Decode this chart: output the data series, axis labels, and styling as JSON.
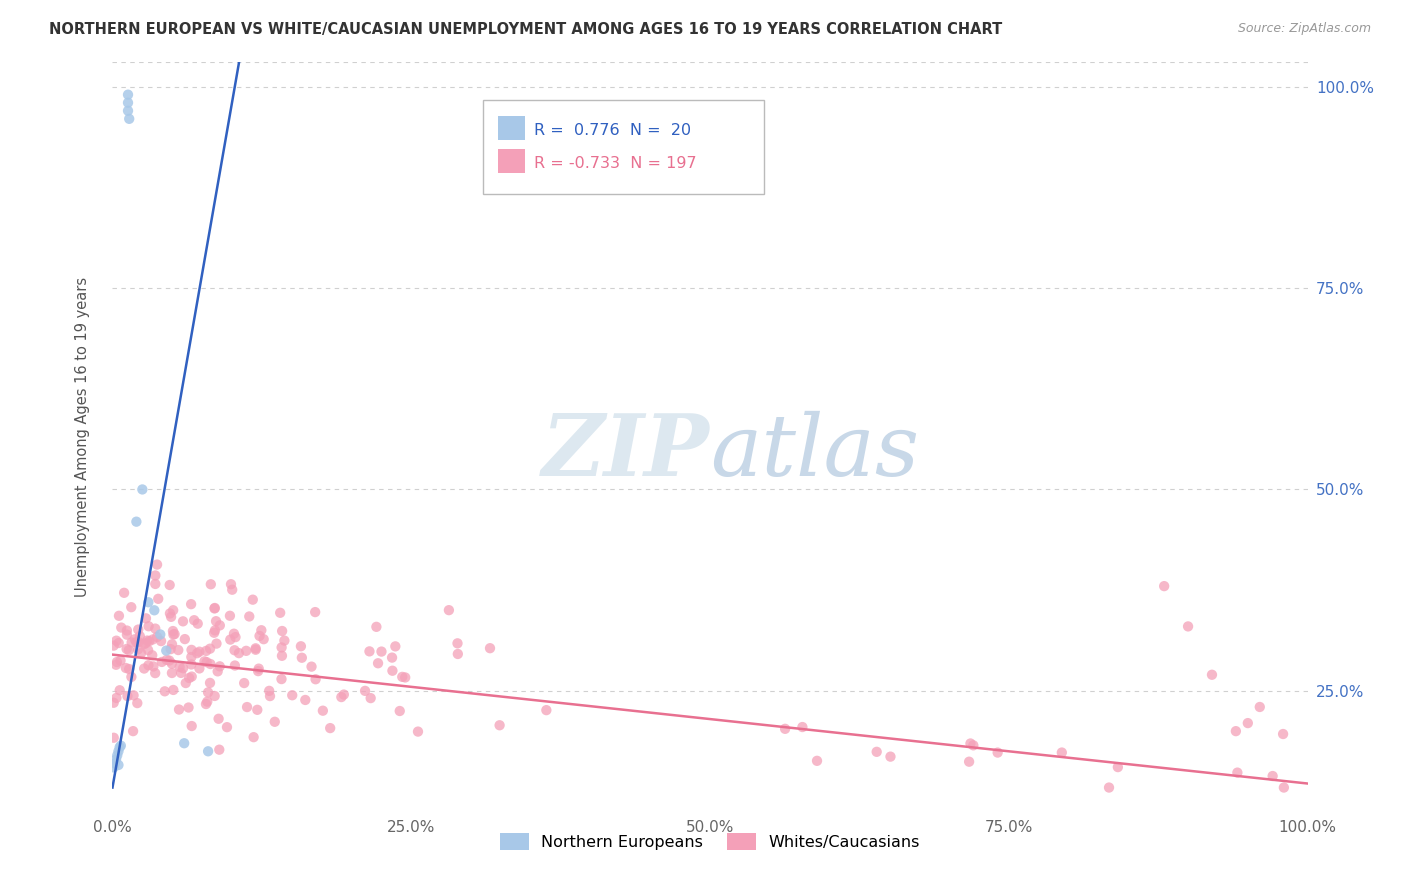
{
  "title": "NORTHERN EUROPEAN VS WHITE/CAUCASIAN UNEMPLOYMENT AMONG AGES 16 TO 19 YEARS CORRELATION CHART",
  "source": "Source: ZipAtlas.com",
  "ylabel": "Unemployment Among Ages 16 to 19 years",
  "xlim": [
    0,
    1
  ],
  "ylim": [
    0.1,
    1.03
  ],
  "blue_R": 0.776,
  "blue_N": 20,
  "pink_R": -0.733,
  "pink_N": 197,
  "blue_color": "#a8c8e8",
  "pink_color": "#f4a0b8",
  "blue_line_color": "#3060c0",
  "pink_line_color": "#e87090",
  "legend_label_blue": "Northern Europeans",
  "legend_label_pink": "Whites/Caucasians",
  "ytick_labels": [
    "25.0%",
    "50.0%",
    "75.0%",
    "100.0%"
  ],
  "ytick_values": [
    0.25,
    0.5,
    0.75,
    1.0
  ],
  "xtick_labels": [
    "0.0%",
    "25.0%",
    "50.0%",
    "75.0%",
    "100.0%"
  ],
  "xtick_values": [
    0.0,
    0.25,
    0.5,
    0.75,
    1.0
  ],
  "background_color": "#ffffff",
  "grid_color": "#d0d0d0",
  "right_tick_color": "#4472c4"
}
